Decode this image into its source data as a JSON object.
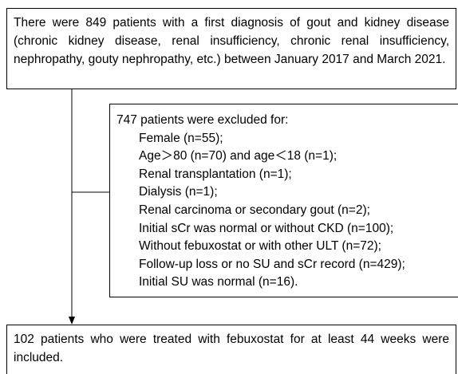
{
  "top_box": {
    "text": "There were 849 patients with a first diagnosis of gout and kidney disease (chronic kidney disease, renal insufficiency, chronic renal insufficiency, nephropathy, gouty nephropathy, etc.) between January 2017 and March 2021."
  },
  "excluded_box": {
    "title": "747 patients were excluded for:",
    "items": [
      "Female (n=55);",
      "Age＞80 (n=70) and age＜18 (n=1);",
      "Renal transplantation (n=1);",
      "Dialysis (n=1);",
      "Renal carcinoma or secondary gout (n=2);",
      "Initial sCr was normal or without CKD (n=100);",
      "Without febuxostat or with other ULT (n=72);",
      "Follow-up loss or no SU and sCr record (n=429);",
      "Initial SU was normal (n=16)."
    ]
  },
  "bottom_box": {
    "text": "102 patients who were treated with febuxostat for at least 44 weeks were included."
  }
}
